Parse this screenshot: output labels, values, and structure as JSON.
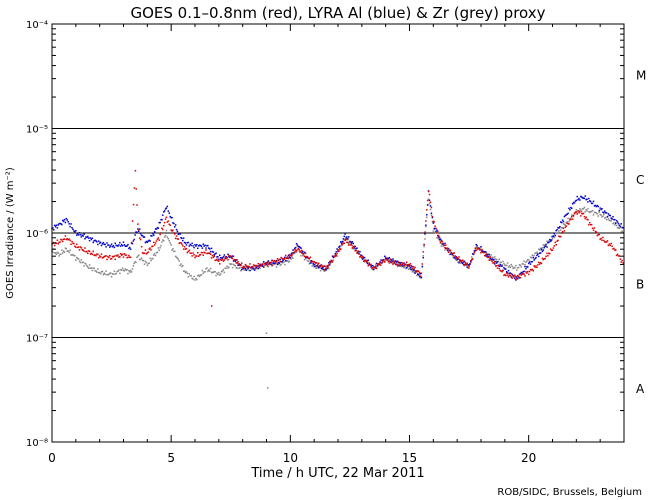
{
  "chart_data": {
    "type": "scatter",
    "title": "GOES 0.1–0.8nm (red), LYRA Al (blue) & Zr (grey) proxy",
    "xlabel": "Time / h UTC, 22 Mar 2011",
    "ylabel": "GOES Irradiance / (W m⁻²)",
    "y_scale": "log",
    "xlim": [
      0,
      24
    ],
    "ylim": [
      1e-08,
      0.0001
    ],
    "x_ticks": [
      0,
      5,
      10,
      15,
      20
    ],
    "x_tick_labels": [
      "0",
      "5",
      "10",
      "15",
      "20"
    ],
    "y_ticks": [
      -8,
      -7,
      -6,
      -5,
      -4
    ],
    "y_tick_labels": [
      "10⁻⁸",
      "10⁻⁷",
      "10⁻⁶",
      "10⁻⁵",
      "10⁻⁴"
    ],
    "flare_class_lines": [
      1e-07,
      1e-06,
      1e-05
    ],
    "flare_class_labels": [
      {
        "label": "A",
        "y": 3.2e-08
      },
      {
        "label": "B",
        "y": 3.2e-07
      },
      {
        "label": "C",
        "y": 3.2e-06
      },
      {
        "label": "M",
        "y": 3.2e-05
      }
    ],
    "credit": "ROB/SIDC, Brussels, Belgium",
    "series": [
      {
        "name": "GOES 0.1–0.8nm",
        "color": "#dd0000",
        "x": [
          0,
          0.3,
          0.6,
          1,
          1.5,
          2,
          2.5,
          3,
          3.3,
          3.5,
          3.6,
          3.8,
          4,
          4.5,
          4.8,
          5,
          5.3,
          5.6,
          6,
          6.5,
          7,
          7.5,
          8,
          8.5,
          9,
          9.5,
          10,
          10.3,
          10.6,
          11,
          11.5,
          12,
          12.3,
          12.6,
          13,
          13.5,
          14,
          14.5,
          15,
          15.5,
          15.8,
          16,
          16.3,
          16.6,
          17,
          17.5,
          17.8,
          18,
          18.5,
          19,
          19.5,
          20,
          20.5,
          21,
          21.5,
          22,
          22.3,
          22.6,
          23,
          23.5,
          24
        ],
        "y": [
          7.8e-07,
          8.2e-07,
          9e-07,
          7.5e-07,
          6.6e-07,
          6e-07,
          5.8e-07,
          6.2e-07,
          5.8e-07,
          4e-06,
          1.2e-06,
          6.5e-07,
          6.5e-07,
          9e-07,
          1.4e-06,
          1.1e-06,
          8.5e-07,
          7e-07,
          6e-07,
          6.6e-07,
          5.3e-07,
          6e-07,
          4.8e-07,
          4.8e-07,
          5e-07,
          5.5e-07,
          6e-07,
          7.2e-07,
          6.2e-07,
          5.2e-07,
          4.6e-07,
          6.6e-07,
          8.5e-07,
          7.5e-07,
          5.8e-07,
          4.6e-07,
          5.6e-07,
          5e-07,
          5e-07,
          4e-07,
          2.6e-06,
          1.3e-06,
          8.5e-07,
          7e-07,
          5.8e-07,
          4.8e-07,
          7.2e-07,
          6.8e-07,
          5.3e-07,
          4e-07,
          3.8e-07,
          4.2e-07,
          5.2e-07,
          7e-07,
          1.1e-06,
          1.6e-06,
          1.5e-06,
          1.2e-06,
          9e-07,
          7.5e-07,
          5e-07
        ]
      },
      {
        "name": "LYRA Al proxy",
        "color": "#0000cc",
        "x": [
          0,
          0.3,
          0.6,
          1,
          1.5,
          2,
          2.5,
          3,
          3.3,
          3.6,
          4,
          4.5,
          4.8,
          5,
          5.3,
          5.6,
          6,
          6.5,
          7,
          7.5,
          8,
          8.5,
          9,
          9.5,
          10,
          10.3,
          10.6,
          11,
          11.5,
          12,
          12.3,
          12.6,
          13,
          13.5,
          14,
          14.5,
          15,
          15.5,
          15.8,
          16,
          16.3,
          16.6,
          17,
          17.5,
          17.8,
          18,
          18.5,
          19,
          19.5,
          20,
          20.5,
          21,
          21.5,
          22,
          22.3,
          22.6,
          23,
          23.5,
          24
        ],
        "y": [
          1.1e-06,
          1.2e-06,
          1.35e-06,
          1e-06,
          9e-07,
          8e-07,
          7.5e-07,
          7.8e-07,
          7.2e-07,
          1.1e-06,
          8e-07,
          1.2e-06,
          1.8e-06,
          1.4e-06,
          1e-06,
          8e-07,
          7.5e-07,
          7.5e-07,
          5.8e-07,
          6e-07,
          4.6e-07,
          4.6e-07,
          5.2e-07,
          5.2e-07,
          6e-07,
          7.8e-07,
          6.2e-07,
          5e-07,
          4.5e-07,
          7e-07,
          9.5e-07,
          8e-07,
          6e-07,
          4.6e-07,
          5.8e-07,
          5.2e-07,
          4.8e-07,
          3.8e-07,
          2.4e-06,
          1.2e-06,
          8.5e-07,
          7e-07,
          5.6e-07,
          4.8e-07,
          7.5e-07,
          7e-07,
          5.5e-07,
          4.5e-07,
          3.6e-07,
          5e-07,
          6.5e-07,
          9e-07,
          1.4e-06,
          2.1e-06,
          2.2e-06,
          2e-06,
          1.7e-06,
          1.4e-06,
          1.1e-06
        ]
      },
      {
        "name": "LYRA Zr proxy",
        "color": "#888888",
        "x": [
          0,
          0.3,
          0.6,
          1,
          1.5,
          2,
          2.5,
          3,
          3.3,
          3.6,
          4,
          4.5,
          4.8,
          5,
          5.3,
          5.6,
          6,
          6.5,
          7,
          7.5,
          8,
          8.5,
          9,
          9.5,
          10,
          10.3,
          10.6,
          11,
          11.5,
          12,
          12.3,
          12.6,
          13,
          13.5,
          14,
          14.5,
          15,
          15.5,
          15.8,
          16,
          16.3,
          16.6,
          17,
          17.5,
          17.8,
          18,
          18.5,
          19,
          19.5,
          20,
          20.5,
          21,
          21.5,
          22,
          22.3,
          22.6,
          23,
          23.5,
          24
        ],
        "y": [
          6.8e-07,
          6.2e-07,
          7e-07,
          5.8e-07,
          4.8e-07,
          4.2e-07,
          4e-07,
          4.5e-07,
          4.2e-07,
          6e-07,
          5e-07,
          7e-07,
          1e-06,
          7.5e-07,
          5.5e-07,
          4.2e-07,
          3.6e-07,
          4.5e-07,
          4e-07,
          5e-07,
          4.5e-07,
          4.6e-07,
          5e-07,
          5e-07,
          5.5e-07,
          7e-07,
          5.8e-07,
          4.8e-07,
          4.4e-07,
          6.5e-07,
          9e-07,
          7.6e-07,
          5.8e-07,
          4.6e-07,
          5.6e-07,
          5e-07,
          4.6e-07,
          3.8e-07,
          2.2e-06,
          1.1e-06,
          8e-07,
          6.8e-07,
          5.5e-07,
          4.8e-07,
          7.3e-07,
          6.8e-07,
          5.8e-07,
          5e-07,
          4.6e-07,
          5.5e-07,
          7e-07,
          9e-07,
          1.2e-06,
          1.6e-06,
          1.7e-06,
          1.6e-06,
          1.5e-06,
          1.3e-06,
          1e-06
        ]
      }
    ],
    "isolated_points": [
      {
        "series": "GOES 0.1–0.8nm",
        "x": 6.7,
        "y": 2e-07
      },
      {
        "series": "LYRA Zr proxy",
        "x": 9.0,
        "y": 1.1e-07
      },
      {
        "series": "LYRA Zr proxy",
        "x": 9.05,
        "y": 3.3e-08
      }
    ]
  }
}
